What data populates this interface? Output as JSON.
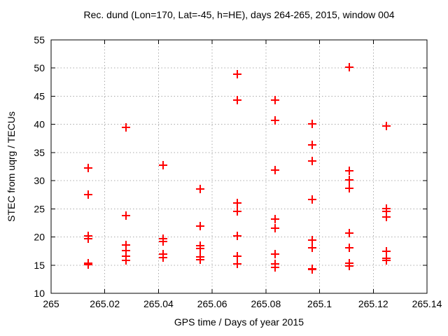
{
  "window": {
    "background": "#ffffff",
    "text_color": "#000000"
  },
  "chart_data": {
    "type": "scatter",
    "title": "Rec. dund (Lon=170, Lat=-45, h=HE), days 264-265, 2015, window 004",
    "xlabel": "GPS time / Days of year 2015",
    "ylabel": "STEC from uqrg / TECUs",
    "xlim": [
      265.0,
      265.14
    ],
    "ylim": [
      10,
      55
    ],
    "grid": true,
    "legend": "none",
    "marker": "plus",
    "marker_color": "#ff0000",
    "grid_color": "#ababab",
    "axis_color": "#000000",
    "x_ticks": [
      265.0,
      265.02,
      265.04,
      265.06,
      265.08,
      265.1,
      265.12,
      265.14
    ],
    "x_tick_labels": [
      "265",
      "265.02",
      "265.04",
      "265.06",
      "265.08",
      "265.1",
      "265.12",
      "265.14"
    ],
    "y_ticks": [
      10,
      15,
      20,
      25,
      30,
      35,
      40,
      45,
      50,
      55
    ],
    "y_tick_labels": [
      "10",
      "15",
      "20",
      "25",
      "30",
      "35",
      "40",
      "45",
      "50",
      "55"
    ],
    "series": [
      {
        "name": "STEC",
        "points": [
          [
            265.0139,
            32.3
          ],
          [
            265.0139,
            27.5
          ],
          [
            265.0139,
            20.2
          ],
          [
            265.0139,
            19.7
          ],
          [
            265.0139,
            15.4
          ],
          [
            265.0139,
            15.1
          ],
          [
            265.0278,
            39.5
          ],
          [
            265.0278,
            23.8
          ],
          [
            265.0278,
            18.6
          ],
          [
            265.0278,
            17.6
          ],
          [
            265.0278,
            16.6
          ],
          [
            265.0278,
            15.8
          ],
          [
            265.0417,
            32.8
          ],
          [
            265.0417,
            19.7
          ],
          [
            265.0417,
            19.2
          ],
          [
            265.0417,
            16.9
          ],
          [
            265.0417,
            16.3
          ],
          [
            265.0556,
            28.5
          ],
          [
            265.0556,
            21.9
          ],
          [
            265.0556,
            18.5
          ],
          [
            265.0556,
            18.0
          ],
          [
            265.0556,
            16.5
          ],
          [
            265.0556,
            16.0
          ],
          [
            265.0694,
            48.9
          ],
          [
            265.0694,
            44.3
          ],
          [
            265.0694,
            26.0
          ],
          [
            265.0694,
            24.5
          ],
          [
            265.0694,
            20.2
          ],
          [
            265.0694,
            16.6
          ],
          [
            265.0694,
            15.2
          ],
          [
            265.0833,
            44.3
          ],
          [
            265.0833,
            40.7
          ],
          [
            265.0833,
            31.9
          ],
          [
            265.0833,
            23.2
          ],
          [
            265.0833,
            21.5
          ],
          [
            265.0833,
            16.9
          ],
          [
            265.0833,
            15.2
          ],
          [
            265.0833,
            14.6
          ],
          [
            265.0972,
            40.1
          ],
          [
            265.0972,
            36.4
          ],
          [
            265.0972,
            33.5
          ],
          [
            265.0972,
            26.6
          ],
          [
            265.0972,
            19.5
          ],
          [
            265.0972,
            18.1
          ],
          [
            265.0972,
            14.4
          ],
          [
            265.0972,
            14.2
          ],
          [
            265.1111,
            50.1
          ],
          [
            265.1111,
            31.7
          ],
          [
            265.1111,
            30.1
          ],
          [
            265.1111,
            28.6
          ],
          [
            265.1111,
            20.7
          ],
          [
            265.1111,
            18.1
          ],
          [
            265.1111,
            15.4
          ],
          [
            265.1111,
            14.9
          ],
          [
            265.125,
            39.7
          ],
          [
            265.125,
            25.0
          ],
          [
            265.125,
            24.5
          ],
          [
            265.125,
            23.6
          ],
          [
            265.125,
            17.4
          ],
          [
            265.125,
            16.2
          ],
          [
            265.125,
            15.8
          ]
        ]
      }
    ]
  }
}
